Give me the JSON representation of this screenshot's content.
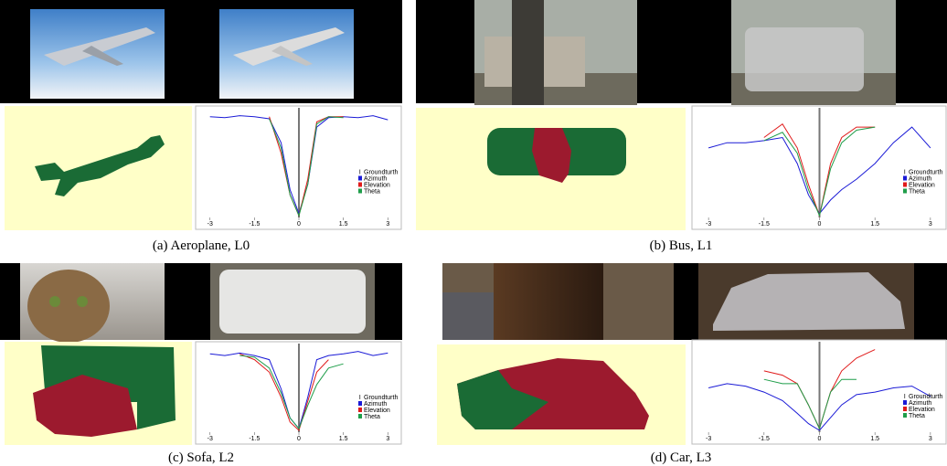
{
  "panels": [
    {
      "caption": "(a) Aeroplane, L0",
      "chart_data": {
        "type": "line",
        "x": [
          -3,
          -2.5,
          -2,
          -1.5,
          -1,
          -0.6,
          -0.3,
          0,
          0.3,
          0.6,
          1,
          1.5,
          2,
          2.5,
          3
        ],
        "xlim": [
          -3.3,
          3.3
        ],
        "xticks": [
          -3,
          -1.5,
          0,
          1.5,
          3
        ],
        "ylim": [
          0,
          1
        ],
        "legend": "right",
        "groundtruth": {
          "name": "Groundturth",
          "color": "#777777",
          "x": 0
        },
        "series": [
          {
            "name": "Azimuth",
            "color": "#1a1ad6",
            "values": [
              0.95,
              0.94,
              0.96,
              0.95,
              0.93,
              0.7,
              0.25,
              0.02,
              0.3,
              0.85,
              0.94,
              0.95,
              0.94,
              0.96,
              0.92
            ]
          },
          {
            "name": "Elevation",
            "color": "#e01b1b",
            "values": [
              null,
              null,
              null,
              null,
              0.95,
              0.6,
              0.2,
              0.0,
              0.35,
              0.9,
              0.95,
              0.95,
              null,
              null,
              null
            ]
          },
          {
            "name": "Theta",
            "color": "#1f9e4a",
            "values": [
              null,
              null,
              null,
              null,
              0.93,
              0.65,
              0.2,
              0.0,
              0.3,
              0.88,
              0.95,
              0.94,
              null,
              null,
              null
            ]
          }
        ]
      }
    },
    {
      "caption": "(b) Bus, L1",
      "chart_data": {
        "type": "line",
        "x": [
          -3,
          -2.5,
          -2,
          -1.5,
          -1,
          -0.6,
          -0.3,
          0,
          0.3,
          0.6,
          1,
          1.5,
          2,
          2.5,
          3
        ],
        "xlim": [
          -3.3,
          3.3
        ],
        "xticks": [
          -3,
          -1.5,
          0,
          1.5,
          3
        ],
        "ylim": [
          0,
          1
        ],
        "legend": "right",
        "groundtruth": {
          "name": "Groundturth",
          "color": "#777777",
          "x": 0
        },
        "series": [
          {
            "name": "Azimuth",
            "color": "#1a1ad6",
            "values": [
              0.65,
              0.7,
              0.7,
              0.72,
              0.75,
              0.5,
              0.2,
              0.02,
              0.15,
              0.25,
              0.35,
              0.5,
              0.7,
              0.85,
              0.65
            ]
          },
          {
            "name": "Elevation",
            "color": "#e01b1b",
            "values": [
              null,
              null,
              null,
              0.75,
              0.88,
              0.65,
              0.3,
              0.0,
              0.5,
              0.75,
              0.85,
              0.85,
              null,
              null,
              null
            ]
          },
          {
            "name": "Theta",
            "color": "#1f9e4a",
            "values": [
              null,
              null,
              null,
              0.72,
              0.8,
              0.6,
              0.25,
              0.0,
              0.45,
              0.7,
              0.82,
              0.85,
              null,
              null,
              null
            ]
          }
        ]
      }
    },
    {
      "caption": "(c) Sofa, L2",
      "chart_data": {
        "type": "line",
        "x": [
          -3,
          -2.5,
          -2,
          -1.5,
          -1,
          -0.6,
          -0.3,
          0,
          0.3,
          0.6,
          1,
          1.5,
          2,
          2.5,
          3
        ],
        "xlim": [
          -3.3,
          3.3
        ],
        "xticks": [
          -3,
          -1.5,
          0,
          1.5,
          3
        ],
        "ylim": [
          0,
          1
        ],
        "legend": "right",
        "groundtruth": {
          "name": "Groundturth",
          "color": "#777777",
          "x": 0
        },
        "series": [
          {
            "name": "Azimuth",
            "color": "#1a1ad6",
            "values": [
              0.92,
              0.9,
              0.93,
              0.9,
              0.85,
              0.5,
              0.15,
              0.02,
              0.4,
              0.85,
              0.9,
              0.92,
              0.95,
              0.9,
              0.93
            ]
          },
          {
            "name": "Elevation",
            "color": "#e01b1b",
            "values": [
              null,
              null,
              0.92,
              0.85,
              0.7,
              0.4,
              0.1,
              0.0,
              0.35,
              0.7,
              0.85,
              null,
              null,
              null,
              null
            ]
          },
          {
            "name": "Theta",
            "color": "#1f9e4a",
            "values": [
              null,
              null,
              0.9,
              0.88,
              0.75,
              0.45,
              0.15,
              0.02,
              0.3,
              0.55,
              0.75,
              0.8,
              null,
              null,
              null
            ]
          }
        ]
      }
    },
    {
      "caption": "(d) Car, L3",
      "chart_data": {
        "type": "line",
        "x": [
          -3,
          -2.5,
          -2,
          -1.5,
          -1,
          -0.6,
          -0.3,
          0,
          0.3,
          0.6,
          1,
          1.5,
          2,
          2.5,
          3
        ],
        "xlim": [
          -3.3,
          3.3
        ],
        "xticks": [
          -3,
          -1.5,
          0,
          1.5,
          3
        ],
        "ylim": [
          0,
          1
        ],
        "legend": "right",
        "groundtruth": {
          "name": "Groundturth",
          "color": "#777777",
          "x": 0
        },
        "series": [
          {
            "name": "Azimuth",
            "color": "#1a1ad6",
            "values": [
              0.5,
              0.55,
              0.52,
              0.45,
              0.35,
              0.2,
              0.08,
              0.0,
              0.15,
              0.3,
              0.42,
              0.45,
              0.5,
              0.52,
              0.4
            ]
          },
          {
            "name": "Elevation",
            "color": "#e01b1b",
            "values": [
              null,
              null,
              null,
              0.7,
              0.65,
              0.55,
              0.3,
              0.02,
              0.45,
              0.7,
              0.85,
              0.95,
              null,
              null,
              null
            ]
          },
          {
            "name": "Theta",
            "color": "#1f9e4a",
            "values": [
              null,
              null,
              null,
              0.6,
              0.55,
              0.55,
              0.3,
              0.02,
              0.45,
              0.6,
              0.6,
              null,
              null,
              null,
              null
            ]
          }
        ]
      }
    }
  ]
}
